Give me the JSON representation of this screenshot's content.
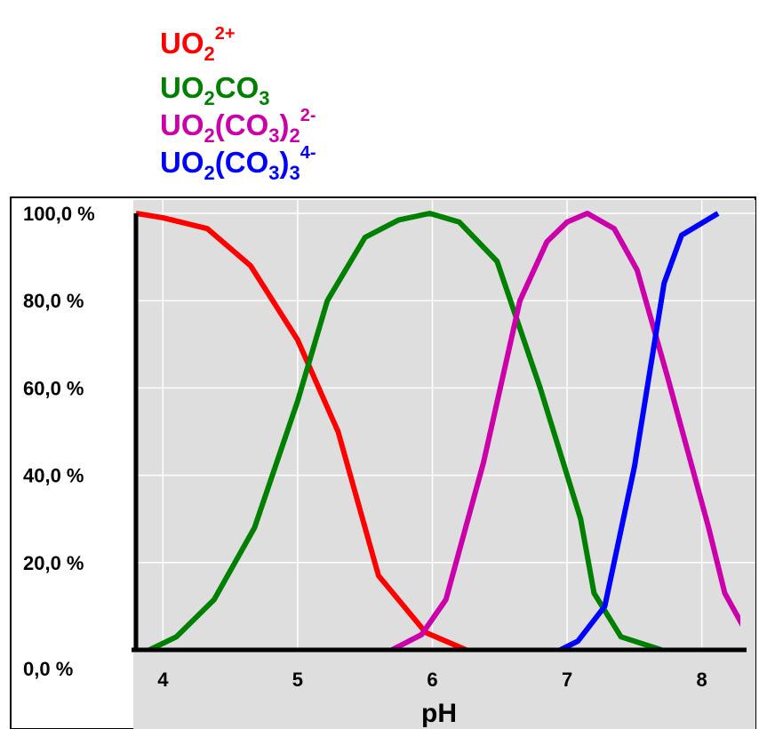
{
  "chart_data": {
    "type": "line",
    "xlabel": "pH",
    "ylabel": "",
    "xlim": [
      3.8,
      8.2
    ],
    "ylim": [
      0,
      100
    ],
    "xticks": [
      4,
      5,
      6,
      7,
      8
    ],
    "xtick_labels": [
      "4",
      "5",
      "6",
      "7",
      "8"
    ],
    "yticks": [
      0,
      20,
      40,
      60,
      80,
      100
    ],
    "ytick_labels": [
      "0,0 %",
      "20,0 %",
      "40,0 %",
      "60,0 %",
      "80,0 %",
      "100,0 %"
    ],
    "grid": true,
    "background_color": "#dedede",
    "legend_position": "top-left",
    "legend": [
      {
        "base": "UO",
        "sub": "2",
        "sup": "2+",
        "color": "#ff0000"
      },
      {
        "base": "UO",
        "sub": "2",
        "mid": "CO",
        "sub2": "3",
        "color": "#008000"
      },
      {
        "base": "UO",
        "sub": "2",
        "mid": "(CO",
        "sub2": "3",
        "mid2": ")",
        "sub3": "2",
        "sup": "2-",
        "color": "#cc00aa"
      },
      {
        "base": "UO",
        "sub": "2",
        "mid": "(CO",
        "sub2": "3",
        "mid2": ")",
        "sub3": "3",
        "sup": "4-",
        "color": "#0000ff"
      }
    ],
    "series": [
      {
        "color": "#ff0000",
        "points": [
          [
            3.8,
            100
          ],
          [
            4.0,
            99
          ],
          [
            4.33,
            96.5
          ],
          [
            4.65,
            88
          ],
          [
            5.0,
            71
          ],
          [
            5.3,
            50
          ],
          [
            5.6,
            17
          ],
          [
            5.95,
            4
          ],
          [
            6.25,
            0
          ]
        ]
      },
      {
        "color": "#008000",
        "points": [
          [
            3.9,
            0
          ],
          [
            4.1,
            3
          ],
          [
            4.38,
            11.5
          ],
          [
            4.68,
            28
          ],
          [
            5.0,
            57
          ],
          [
            5.22,
            80
          ],
          [
            5.5,
            94.5
          ],
          [
            5.75,
            98.5
          ],
          [
            5.98,
            100
          ],
          [
            6.2,
            98
          ],
          [
            6.48,
            89
          ],
          [
            6.8,
            60
          ],
          [
            7.1,
            30
          ],
          [
            7.2,
            13
          ],
          [
            7.4,
            3
          ],
          [
            7.7,
            0
          ]
        ]
      },
      {
        "color": "#cc00aa",
        "points": [
          [
            5.7,
            0
          ],
          [
            5.92,
            3.5
          ],
          [
            6.1,
            11.5
          ],
          [
            6.38,
            43
          ],
          [
            6.65,
            80
          ],
          [
            6.85,
            93.5
          ],
          [
            7.0,
            98
          ],
          [
            7.15,
            100
          ],
          [
            7.35,
            96.5
          ],
          [
            7.52,
            87
          ],
          [
            7.75,
            62
          ],
          [
            8.05,
            28
          ],
          [
            8.17,
            13
          ],
          [
            8.35,
            3
          ]
        ]
      },
      {
        "color": "#0000ff",
        "points": [
          [
            6.95,
            0
          ],
          [
            7.08,
            2
          ],
          [
            7.28,
            10
          ],
          [
            7.5,
            42
          ],
          [
            7.72,
            84
          ],
          [
            7.85,
            95
          ],
          [
            8.12,
            100
          ]
        ]
      }
    ]
  }
}
